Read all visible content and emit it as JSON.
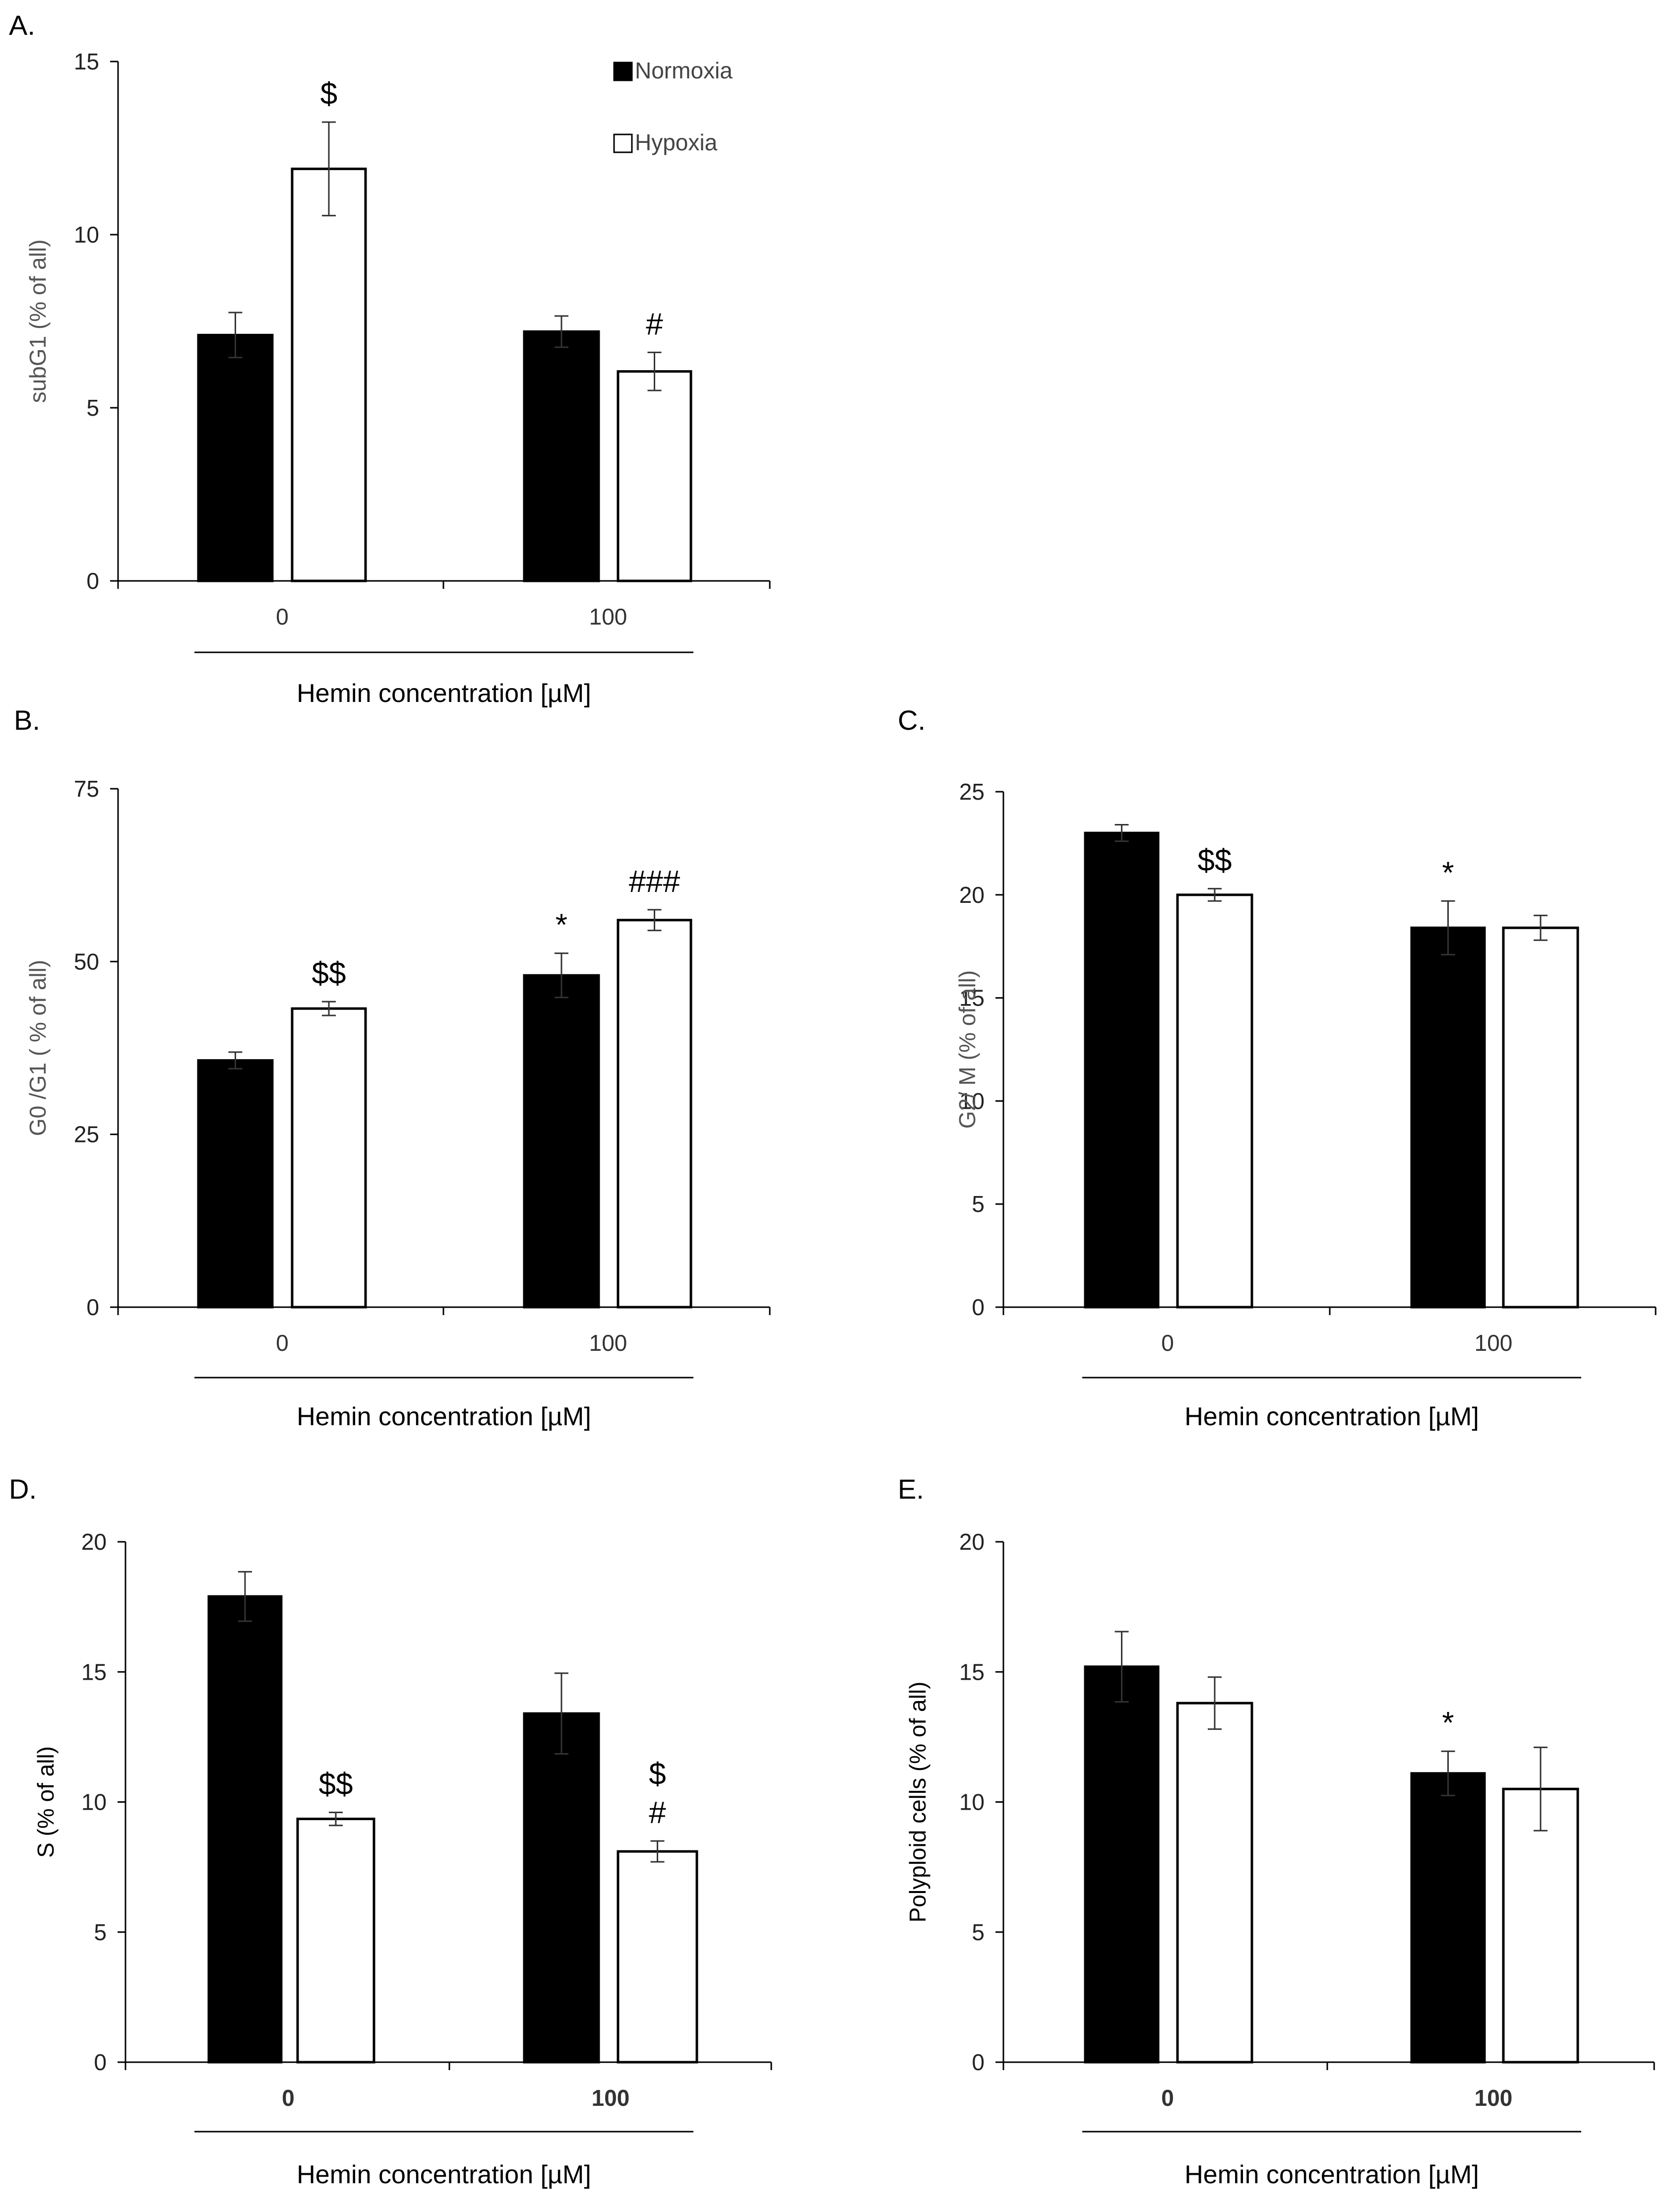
{
  "figure": {
    "legend": {
      "normoxia": "Normoxia",
      "hypoxia": "Hypoxia"
    },
    "colors": {
      "normoxia": "#000000",
      "hypoxia": "#ffffff",
      "axis": "#000000"
    }
  },
  "chart_data": [
    {
      "panel": "A.",
      "type": "bar",
      "categories": [
        "0",
        "100"
      ],
      "series": [
        {
          "name": "Normoxia",
          "values": [
            7.1,
            7.2
          ],
          "errors": [
            0.65,
            0.45
          ]
        },
        {
          "name": "Hypoxia",
          "values": [
            11.9,
            6.05
          ],
          "errors": [
            1.35,
            0.55
          ]
        }
      ],
      "significance": {
        "Normoxia": [
          "",
          ""
        ],
        "Hypoxia": [
          "$",
          "#"
        ]
      },
      "xlabel": "Hemin concentration [µM]",
      "ylabel": "subG1 (% of all)",
      "ylim": [
        0,
        15
      ],
      "yticks": [
        0,
        5,
        10,
        15
      ],
      "legend": "top-right"
    },
    {
      "panel": "B.",
      "type": "bar",
      "categories": [
        "0",
        "100"
      ],
      "series": [
        {
          "name": "Normoxia",
          "values": [
            35.7,
            48.0
          ],
          "errors": [
            1.2,
            3.2
          ]
        },
        {
          "name": "Hypoxia",
          "values": [
            43.2,
            56.0
          ],
          "errors": [
            1.0,
            1.5
          ]
        }
      ],
      "significance": {
        "Normoxia": [
          "",
          "*"
        ],
        "Hypoxia": [
          "$$",
          "###"
        ]
      },
      "xlabel": "Hemin concentration [µM]",
      "ylabel": "G0 /G1 ( % of all)",
      "ylim": [
        0,
        75
      ],
      "yticks": [
        0,
        25,
        50,
        75
      ]
    },
    {
      "panel": "C.",
      "type": "bar",
      "categories": [
        "0",
        "100"
      ],
      "series": [
        {
          "name": "Normoxia",
          "values": [
            23.0,
            18.4
          ],
          "errors": [
            0.4,
            1.3
          ]
        },
        {
          "name": "Hypoxia",
          "values": [
            20.0,
            18.4
          ],
          "errors": [
            0.3,
            0.6
          ]
        }
      ],
      "significance": {
        "Normoxia": [
          "",
          "*"
        ],
        "Hypoxia": [
          "$$",
          ""
        ]
      },
      "xlabel": "Hemin concentration [µM]",
      "ylabel": "G2/ M  (% of all)",
      "ylim": [
        0,
        25
      ],
      "yticks": [
        0,
        5,
        10,
        15,
        20,
        25
      ]
    },
    {
      "panel": "D.",
      "type": "bar",
      "categories": [
        "0",
        "100"
      ],
      "series": [
        {
          "name": "Normoxia",
          "values": [
            17.9,
            13.4
          ],
          "errors": [
            0.95,
            1.55
          ]
        },
        {
          "name": "Hypoxia",
          "values": [
            9.35,
            8.1
          ],
          "errors": [
            0.25,
            0.4
          ]
        }
      ],
      "significance": {
        "Normoxia": [
          "",
          ""
        ],
        "Hypoxia": [
          "$$",
          "$\n#"
        ]
      },
      "xlabel": "Hemin concentration [µM]",
      "ylabel": "S (% of all)",
      "ylim": [
        0,
        20
      ],
      "yticks": [
        0,
        5,
        10,
        15,
        20
      ]
    },
    {
      "panel": "E.",
      "type": "bar",
      "categories": [
        "0",
        "100"
      ],
      "series": [
        {
          "name": "Normoxia",
          "values": [
            15.2,
            11.1
          ],
          "errors": [
            1.35,
            0.85
          ]
        },
        {
          "name": "Hypoxia",
          "values": [
            13.8,
            10.5
          ],
          "errors": [
            1.0,
            1.6
          ]
        }
      ],
      "significance": {
        "Normoxia": [
          "",
          "*"
        ],
        "Hypoxia": [
          "",
          ""
        ]
      },
      "xlabel": "Hemin concentration [µM]",
      "ylabel": "Polyploid cells (% of all)",
      "ylim": [
        0,
        20
      ],
      "yticks": [
        0,
        5,
        10,
        15,
        20
      ]
    }
  ]
}
